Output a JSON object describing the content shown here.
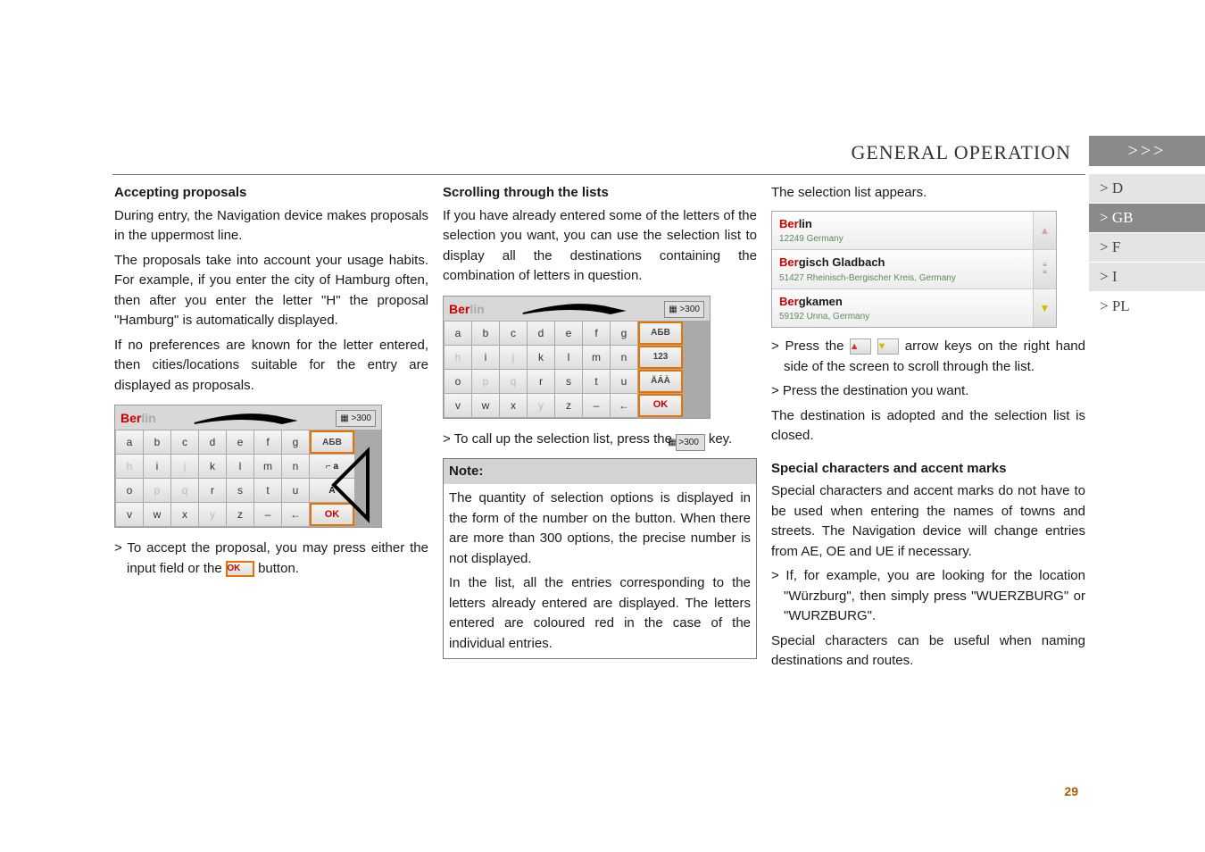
{
  "chapter": {
    "title": "GENERAL OPERATION",
    "arrows": ">>>"
  },
  "langTabs": [
    {
      "label": "> D",
      "state": "inactive"
    },
    {
      "label": "> GB",
      "state": "active"
    },
    {
      "label": "> F",
      "state": "inactive"
    },
    {
      "label": "> I",
      "state": "inactive"
    },
    {
      "label": "> PL",
      "state": "last"
    }
  ],
  "pageNumber": "29",
  "col1": {
    "h1": "Accepting proposals",
    "p1": "During entry, the Navigation device makes proposals in the uppermost line.",
    "p2": "The proposals take into account your usage habits. For example, if you enter the city of Hamburg often, then after you enter the letter \"H\" the proposal \"Hamburg\" is automatically displayed.",
    "p3": "If no preferences are known for the letter entered, then cities/locations suitable for the entry are displayed as proposals.",
    "p4a": "> To accept the proposal, you may press either the input field or the ",
    "p4b": " button.",
    "okBtn": "OK",
    "kb": {
      "input_red": "Ber",
      "input_grey": "lin",
      "count": ">300",
      "rows": [
        [
          {
            "t": "a"
          },
          {
            "t": "b"
          },
          {
            "t": "c"
          },
          {
            "t": "d"
          },
          {
            "t": "e"
          },
          {
            "t": "f"
          },
          {
            "t": "g"
          },
          {
            "side": "АБВ",
            "cls": "orange"
          }
        ],
        [
          {
            "t": "h",
            "dim": true
          },
          {
            "t": "i"
          },
          {
            "t": "j",
            "dim": true
          },
          {
            "t": "k"
          },
          {
            "t": "l"
          },
          {
            "t": "m"
          },
          {
            "t": "n"
          },
          {
            "side": "⌐ a",
            "cls": ""
          }
        ],
        [
          {
            "t": "o"
          },
          {
            "t": "p",
            "dim": true
          },
          {
            "t": "q",
            "dim": true
          },
          {
            "t": "r"
          },
          {
            "t": "s"
          },
          {
            "t": "t"
          },
          {
            "t": "u"
          },
          {
            "side": "A",
            "cls": ""
          }
        ],
        [
          {
            "t": "v"
          },
          {
            "t": "w"
          },
          {
            "t": "x"
          },
          {
            "t": "y",
            "dim": true
          },
          {
            "t": "z"
          },
          {
            "t": "–"
          },
          {
            "t": "←"
          },
          {
            "side": "OK",
            "cls": "ok"
          }
        ]
      ]
    }
  },
  "col2": {
    "h1": "Scrolling through the lists",
    "p1": "If you have already entered some of the letters of the selection you want, you can use the selection list to display all the destinations containing the combination of letters in question.",
    "p2a": "> To call up the selection list, press the ",
    "p2b": " key.",
    "listBadge": "▦ >300",
    "noteHead": "Note:",
    "noteBody1": "The quantity of selection options is displayed in the form of the number on the button. When there are more than 300 options, the precise number is not displayed.",
    "noteBody2": "In the list, all the entries corresponding to the letters already entered are displayed. The letters entered are coloured red in the case of the individual entries.",
    "kb": {
      "input_red": "Ber",
      "input_grey": "lin",
      "count": ">300",
      "rows": [
        [
          {
            "t": "a"
          },
          {
            "t": "b"
          },
          {
            "t": "c"
          },
          {
            "t": "d"
          },
          {
            "t": "e"
          },
          {
            "t": "f"
          },
          {
            "t": "g"
          },
          {
            "side": "АБВ",
            "cls": "orange"
          }
        ],
        [
          {
            "t": "h",
            "dim": true
          },
          {
            "t": "i"
          },
          {
            "t": "j",
            "dim": true
          },
          {
            "t": "k"
          },
          {
            "t": "l"
          },
          {
            "t": "m"
          },
          {
            "t": "n"
          },
          {
            "side": "123",
            "cls": "orange"
          }
        ],
        [
          {
            "t": "o"
          },
          {
            "t": "p",
            "dim": true
          },
          {
            "t": "q",
            "dim": true
          },
          {
            "t": "r"
          },
          {
            "t": "s"
          },
          {
            "t": "t"
          },
          {
            "t": "u"
          },
          {
            "side": "ÄÁÀ",
            "cls": "orange"
          }
        ],
        [
          {
            "t": "v"
          },
          {
            "t": "w"
          },
          {
            "t": "x"
          },
          {
            "t": "y",
            "dim": true
          },
          {
            "t": "z"
          },
          {
            "t": "–"
          },
          {
            "t": "←"
          },
          {
            "side": "OK",
            "cls": "ok"
          }
        ]
      ]
    }
  },
  "col3": {
    "lead": "The selection list appears.",
    "list": [
      {
        "name_red": "Ber",
        "name_rest": "lin",
        "sub": "12249 Germany",
        "icon": "up"
      },
      {
        "name_red": "Ber",
        "name_rest": "gisch Gladbach",
        "sub": "51427 Rheinisch-Bergischer Kreis, Germany",
        "icon": "bars"
      },
      {
        "name_red": "Ber",
        "name_rest": "gkamen",
        "sub": "59192 Unna, Germany",
        "icon": "down"
      }
    ],
    "b1a": "> Press the ",
    "b1b": " arrow keys on the right hand side of the screen to scroll through the list.",
    "b2": "> Press the destination you want.",
    "p2": "The destination is adopted and the selection list is closed.",
    "h2": "Special characters and accent marks",
    "p3": "Special characters and accent marks do not have to be used when entering the names of towns and streets. The Navigation device will change entries from AE, OE and UE if necessary.",
    "b3": "> If, for example, you are looking for the location \"Würzburg\", then simply press \"WUERZBURG\" or \"WURZBURG\".",
    "p4": "Special characters can be useful when naming destinations and routes."
  }
}
